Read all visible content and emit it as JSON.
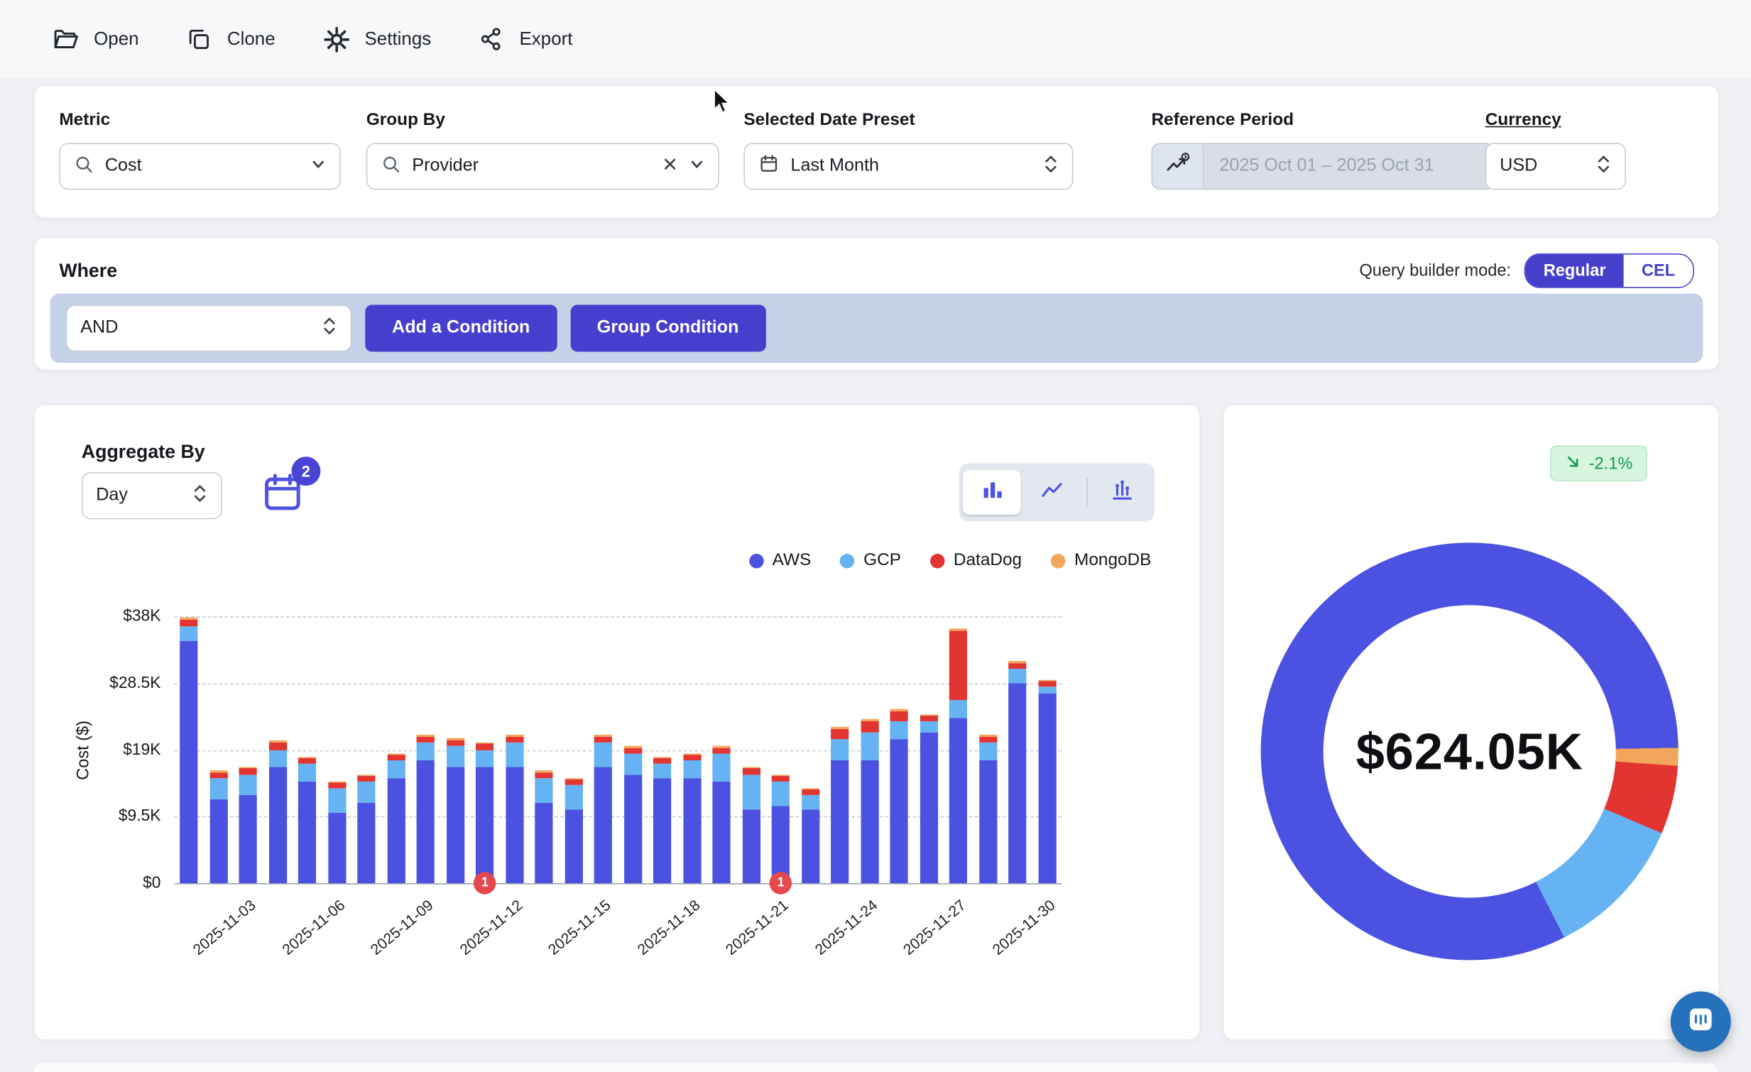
{
  "toolbar": {
    "items": [
      {
        "label": "Open"
      },
      {
        "label": "Clone"
      },
      {
        "label": "Settings"
      },
      {
        "label": "Export"
      }
    ]
  },
  "filters": {
    "metric": {
      "label": "Metric",
      "value": "Cost"
    },
    "group_by": {
      "label": "Group By",
      "value": "Provider"
    },
    "date_preset": {
      "label": "Selected Date Preset",
      "value": "Last Month"
    },
    "reference_period": {
      "label": "Reference Period",
      "value": "2025 Oct 01 – 2025 Oct 31"
    },
    "currency": {
      "label": "Currency",
      "value": "USD"
    }
  },
  "where": {
    "label": "Where",
    "mode_label": "Query builder mode:",
    "modes": [
      "Regular",
      "CEL"
    ],
    "active_mode": "Regular",
    "operator": "AND",
    "add_condition": "Add a Condition",
    "group_condition": "Group Condition"
  },
  "aggregate": {
    "label": "Aggregate By",
    "value": "Day",
    "calendar_badge": "2"
  },
  "chart_data": [
    {
      "type": "bar",
      "stacked": true,
      "unit": "$K",
      "ylabel": "Cost ($)",
      "ylim": [
        0,
        38
      ],
      "yticks": [
        0,
        9.5,
        19,
        28.5,
        38
      ],
      "ytick_labels": [
        "$0",
        "$9.5K",
        "$19K",
        "$28.5K",
        "$38K"
      ],
      "x": [
        "2025-11-01",
        "2025-11-02",
        "2025-11-03",
        "2025-11-04",
        "2025-11-05",
        "2025-11-06",
        "2025-11-07",
        "2025-11-08",
        "2025-11-09",
        "2025-11-10",
        "2025-11-11",
        "2025-11-12",
        "2025-11-13",
        "2025-11-14",
        "2025-11-15",
        "2025-11-16",
        "2025-11-17",
        "2025-11-18",
        "2025-11-19",
        "2025-11-20",
        "2025-11-21",
        "2025-11-22",
        "2025-11-23",
        "2025-11-24",
        "2025-11-25",
        "2025-11-26",
        "2025-11-27",
        "2025-11-28",
        "2025-11-29",
        "2025-11-30"
      ],
      "x_tick_indices": [
        2,
        5,
        8,
        11,
        14,
        17,
        20,
        23,
        26,
        29
      ],
      "series": [
        {
          "name": "AWS",
          "color": "#4b51e0",
          "values": [
            34.5,
            12,
            12.5,
            16.5,
            14.5,
            10,
            11.5,
            15,
            17.5,
            16.5,
            16.5,
            16.5,
            11.5,
            10.5,
            16.5,
            15.5,
            15,
            15,
            14.5,
            10.5,
            11,
            10.5,
            17.5,
            17.5,
            20.5,
            21.5,
            23.5,
            17.5,
            28.5,
            27
          ]
        },
        {
          "name": "GCP",
          "color": "#66b3f3",
          "values": [
            2,
            3,
            3,
            2.5,
            2.5,
            3.5,
            3,
            2.5,
            2.5,
            3,
            2.5,
            3.5,
            3.5,
            3.5,
            3.5,
            3,
            2,
            2.5,
            4,
            5,
            3.5,
            2,
            3,
            4,
            2.5,
            1.5,
            2.5,
            2.5,
            2,
            1
          ]
        },
        {
          "name": "DataDog",
          "color": "#e23430",
          "values": [
            1,
            0.8,
            0.8,
            1,
            0.8,
            0.8,
            0.8,
            0.8,
            0.8,
            0.8,
            0.8,
            0.8,
            0.8,
            0.8,
            0.8,
            0.8,
            0.8,
            0.8,
            0.8,
            0.8,
            0.8,
            0.8,
            1.5,
            1.5,
            1.5,
            0.8,
            10,
            0.8,
            0.8,
            0.8
          ]
        },
        {
          "name": "MongoDB",
          "color": "#f2a65c",
          "values": [
            0.3,
            0.2,
            0.2,
            0.3,
            0.2,
            0.2,
            0.2,
            0.2,
            0.3,
            0.3,
            0.2,
            0.3,
            0.2,
            0.2,
            0.3,
            0.2,
            0.2,
            0.2,
            0.2,
            0.2,
            0.2,
            0.2,
            0.3,
            0.3,
            0.3,
            0.2,
            0.3,
            0.3,
            0.3,
            0.2
          ]
        }
      ],
      "annotations": [
        {
          "x_index": 10,
          "label": "1"
        },
        {
          "x_index": 20,
          "label": "1"
        }
      ]
    },
    {
      "type": "donut",
      "unit": "$K",
      "center_label": "$624.05K",
      "trend": "-2.1%",
      "start_angle_deg": 89,
      "draw_order": [
        "MongoDB",
        "DataDog",
        "GCP",
        "AWS"
      ],
      "series": [
        {
          "name": "AWS",
          "value": 513.1,
          "color": "#4b51e0"
        },
        {
          "name": "GCP",
          "value": 69.3,
          "color": "#66b3f3"
        },
        {
          "name": "DataDog",
          "value": 33.1,
          "color": "#e23430"
        },
        {
          "name": "MongoDB",
          "value": 8.6,
          "color": "#f2a65c"
        }
      ]
    }
  ]
}
